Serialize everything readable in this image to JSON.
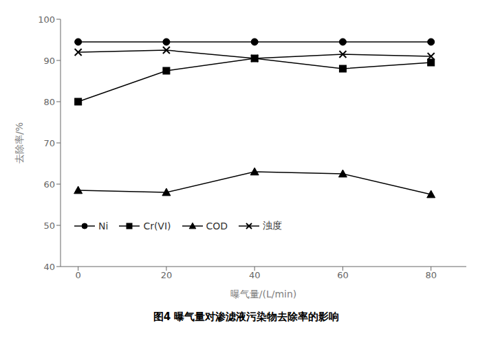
{
  "chart_data": {
    "type": "line",
    "title": "图4   曝气量对渗滤液污染物去除率的影响",
    "xlabel": "曝气量/(L/min)",
    "ylabel": "去除率/%",
    "x": [
      0,
      20,
      40,
      60,
      80
    ],
    "series": [
      {
        "name": "Ni",
        "color": "black",
        "marker": "circle",
        "values": [
          94.5,
          94.5,
          94.5,
          94.5,
          94.5
        ]
      },
      {
        "name": "Cr(VI)",
        "color": "black",
        "marker": "square",
        "values": [
          80.0,
          87.5,
          90.5,
          88.0,
          89.5
        ]
      },
      {
        "name": "COD",
        "color": "black",
        "marker": "triangle",
        "values": [
          58.5,
          58.0,
          63.0,
          62.5,
          57.5
        ]
      },
      {
        "name": "浊度",
        "color": "black",
        "marker": "x",
        "values": [
          92.0,
          92.5,
          90.5,
          91.5,
          91.0
        ]
      }
    ],
    "xlim": [
      -4,
      88
    ],
    "xticks": [
      0,
      20,
      40,
      60,
      80
    ],
    "ylim": [
      40,
      100
    ],
    "yticks": [
      40,
      50,
      60,
      70,
      80,
      90,
      100
    ],
    "grid": false,
    "legend": "lower left"
  }
}
